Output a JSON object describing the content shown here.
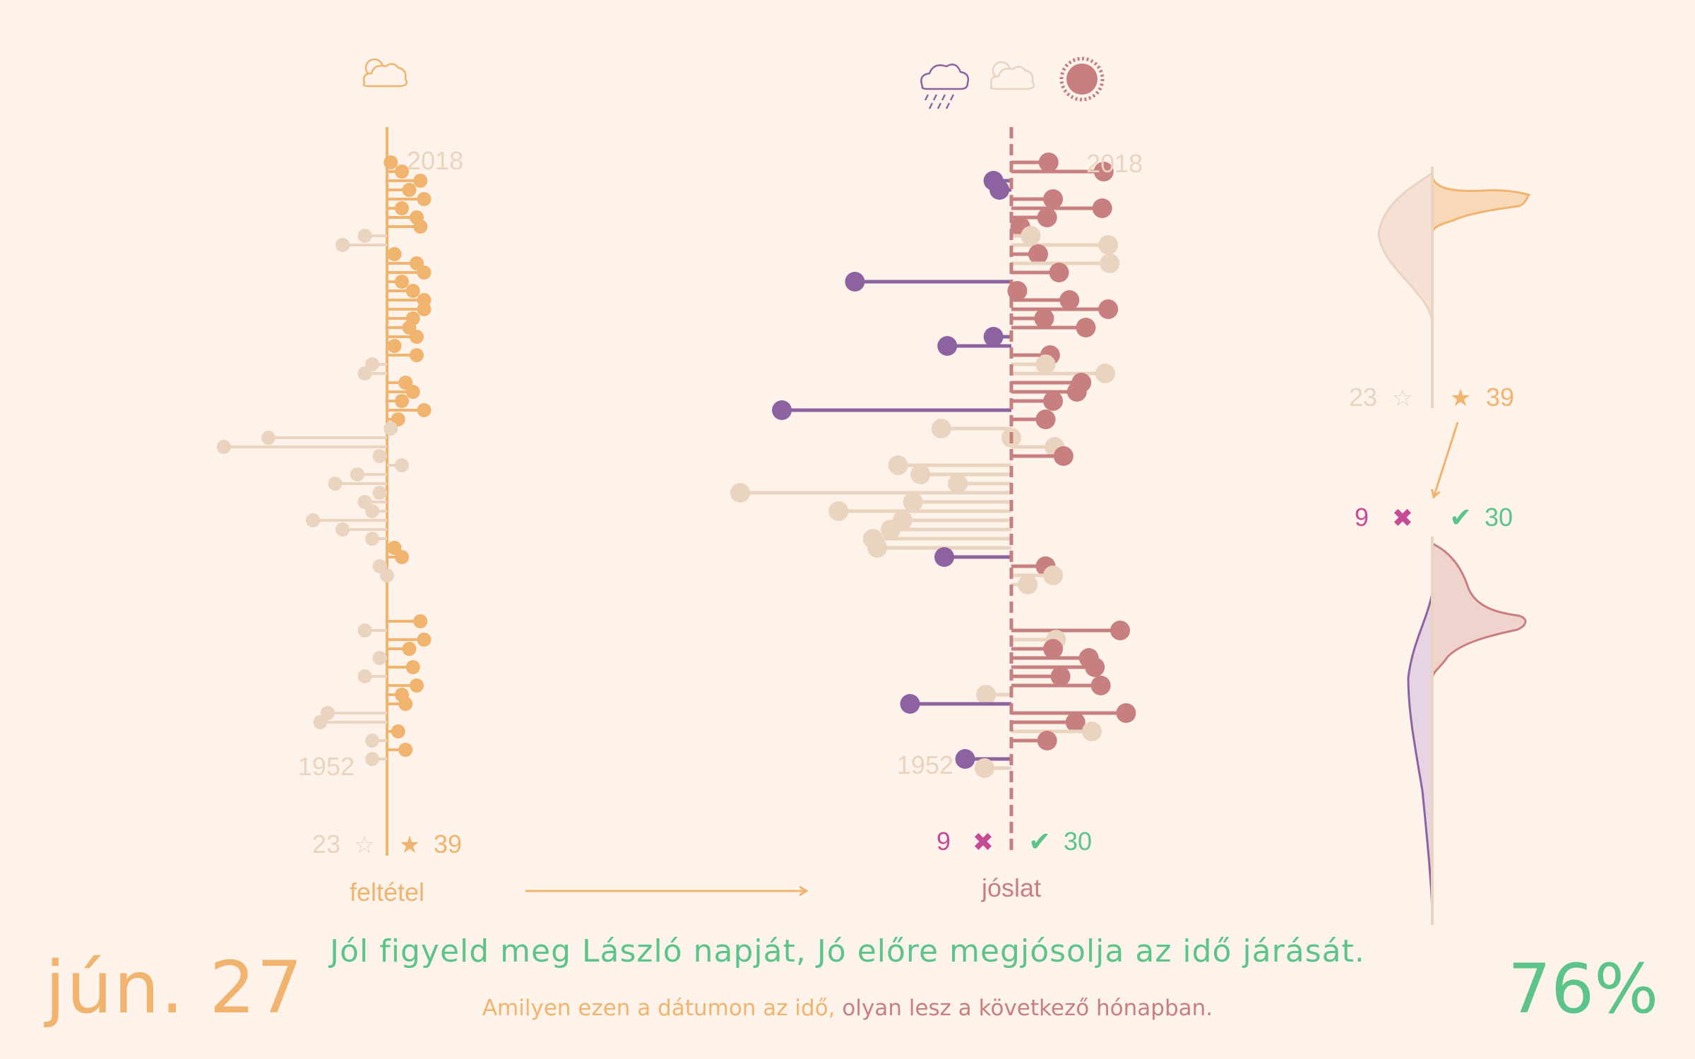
{
  "date_label": "jún. 27",
  "accuracy_label": "76%",
  "proverb": "Jól figyeld meg László napját, Jó előre megjósolja az idő járását.",
  "subtitle": {
    "part1": "Amilyen ezen a dátumon az idő,",
    "part2": "olyan lesz a következő hónapban."
  },
  "colors": {
    "background": "#fdf3ea",
    "condition": "#f0b46e",
    "faded": "#ead3bf",
    "forecast_hot": "#c77f7f",
    "forecast_cold": "#8c63a0",
    "correct": "#5cc489",
    "wrong": "#c64a95"
  },
  "icons": {
    "condition": [
      "partly-cloudy-icon"
    ],
    "forecast": [
      "rain-cloud-icon",
      "partly-cloudy-icon",
      "sun-icon"
    ]
  },
  "chart_data": [
    {
      "type": "lollipop",
      "name": "feltétel",
      "axis_label": "feltétel",
      "year_range": [
        1952,
        2018
      ],
      "year_labels": [
        "2018",
        "1952"
      ],
      "counts": {
        "miss": 23,
        "hit": 39,
        "miss_symbol": "☆",
        "hit_symbol": "★"
      },
      "years": [
        2018,
        2017,
        2016,
        2015,
        2014,
        2013,
        2012,
        2011,
        2010,
        2009,
        2008,
        2007,
        2006,
        2005,
        2004,
        2003,
        2002,
        2001,
        2000,
        1999,
        1998,
        1997,
        1996,
        1995,
        1994,
        1993,
        1992,
        1991,
        1990,
        1989,
        1988,
        1987,
        1986,
        1985,
        1984,
        1983,
        1982,
        1981,
        1980,
        1979,
        1978,
        1977,
        1976,
        1975,
        1974,
        1973,
        1972,
        1971,
        1970,
        1969,
        1968,
        1967,
        1966,
        1965,
        1964,
        1963,
        1962,
        1961,
        1960,
        1959,
        1958,
        1957,
        1956,
        1955,
        1954,
        1953,
        1952
      ],
      "values": [
        0.5,
        2,
        4.5,
        3,
        5,
        2,
        4,
        4.5,
        -3,
        -6,
        1,
        4,
        5,
        2,
        3.5,
        5,
        5,
        3.5,
        3,
        4,
        1,
        4,
        -2,
        -3,
        2.5,
        3.5,
        2,
        5,
        1.5,
        0.5,
        -16,
        -22,
        -1,
        2,
        -4,
        -7,
        -1,
        -3,
        -2,
        -10,
        -6,
        -2,
        1,
        2,
        -1,
        0,
        null,
        null,
        null,
        null,
        4.5,
        -3,
        5,
        3,
        -1,
        3.5,
        -3,
        4,
        2,
        2.5,
        -8,
        -9,
        1.5,
        -2,
        2.5,
        -2,
        null
      ],
      "hits": [
        true,
        true,
        true,
        true,
        true,
        true,
        true,
        true,
        false,
        false,
        true,
        true,
        true,
        true,
        true,
        true,
        true,
        true,
        true,
        true,
        true,
        true,
        false,
        false,
        true,
        true,
        true,
        true,
        true,
        false,
        false,
        false,
        false,
        false,
        false,
        false,
        false,
        false,
        false,
        false,
        false,
        false,
        true,
        true,
        false,
        false,
        null,
        null,
        null,
        null,
        true,
        false,
        true,
        true,
        false,
        true,
        false,
        true,
        true,
        true,
        false,
        false,
        true,
        false,
        true,
        false,
        null
      ]
    },
    {
      "type": "lollipop",
      "name": "jóslat",
      "axis_label": "jóslat",
      "year_range": [
        1952,
        2018
      ],
      "year_labels": [
        "2018",
        "1952"
      ],
      "counts": {
        "wrong": 9,
        "correct": 30,
        "wrong_symbol": "✖",
        "correct_symbol": "✔"
      },
      "years": [
        2018,
        2017,
        2016,
        2015,
        2014,
        2013,
        2012,
        2011,
        2010,
        2009,
        2008,
        2007,
        2006,
        2005,
        2004,
        2003,
        2002,
        2001,
        2000,
        1999,
        1998,
        1997,
        1996,
        1995,
        1994,
        1993,
        1992,
        1991,
        1990,
        1989,
        1988,
        1987,
        1986,
        1985,
        1984,
        1983,
        1982,
        1981,
        1980,
        1979,
        1978,
        1977,
        1976,
        1975,
        1974,
        1973,
        1972,
        1971,
        1970,
        1969,
        1968,
        1967,
        1966,
        1965,
        1964,
        1963,
        1962,
        1961,
        1960,
        1959,
        1958,
        1957,
        1956,
        1955,
        1954,
        1953,
        1952
      ],
      "values": [
        2.5,
        6.2,
        -1.2,
        -0.8,
        2.8,
        6.1,
        2.4,
        0.6,
        1.3,
        6.5,
        1.8,
        6.6,
        3.2,
        -10.5,
        0.4,
        3.9,
        6.5,
        2.2,
        5.0,
        -1.2,
        -4.3,
        2.6,
        2.3,
        6.3,
        4.7,
        4.4,
        2.8,
        -15.4,
        2.3,
        -4.7,
        0,
        2.9,
        3.5,
        -7.6,
        -6.1,
        -3.6,
        -18.2,
        -6.6,
        -11.6,
        -7.3,
        -8.1,
        -9.3,
        -9.0,
        -4.5,
        2.3,
        2.8,
        1.1,
        null,
        null,
        null,
        null,
        7.3,
        3.0,
        2.8,
        5.2,
        5.6,
        3.3,
        6.0,
        -1.7,
        -6.8,
        7.7,
        4.3,
        5.4,
        2.4,
        null,
        -3.1,
        -1.8
      ],
      "outcome": [
        "hot",
        "hot",
        "cold",
        "cold",
        "hot",
        "hot",
        "hot",
        "hot",
        "faded",
        "faded",
        "hot",
        "faded",
        "hot",
        "cold",
        "hot",
        "hot",
        "hot",
        "hot",
        "hot",
        "cold",
        "cold",
        "hot",
        "faded",
        "faded",
        "hot",
        "hot",
        "hot",
        "cold",
        "hot",
        "faded",
        "faded",
        "faded",
        "hot",
        "faded",
        "faded",
        "faded",
        "faded",
        "faded",
        "faded",
        "faded",
        "faded",
        "faded",
        "faded",
        "cold",
        "hot",
        "faded",
        "faded",
        null,
        null,
        null,
        null,
        "hot",
        "faded",
        "hot",
        "hot",
        "hot",
        "hot",
        "hot",
        "faded",
        "cold",
        "hot",
        "hot",
        "faded",
        "hot",
        null,
        "cold",
        "faded"
      ]
    },
    {
      "type": "violin",
      "name": "condition-distribution",
      "counts": {
        "miss": 23,
        "hit": 39,
        "miss_symbol": "☆",
        "hit_symbol": "★"
      }
    },
    {
      "type": "violin",
      "name": "forecast-distribution",
      "counts": {
        "wrong": 9,
        "correct": 30,
        "wrong_symbol": "✖",
        "correct_symbol": "✔"
      }
    }
  ]
}
